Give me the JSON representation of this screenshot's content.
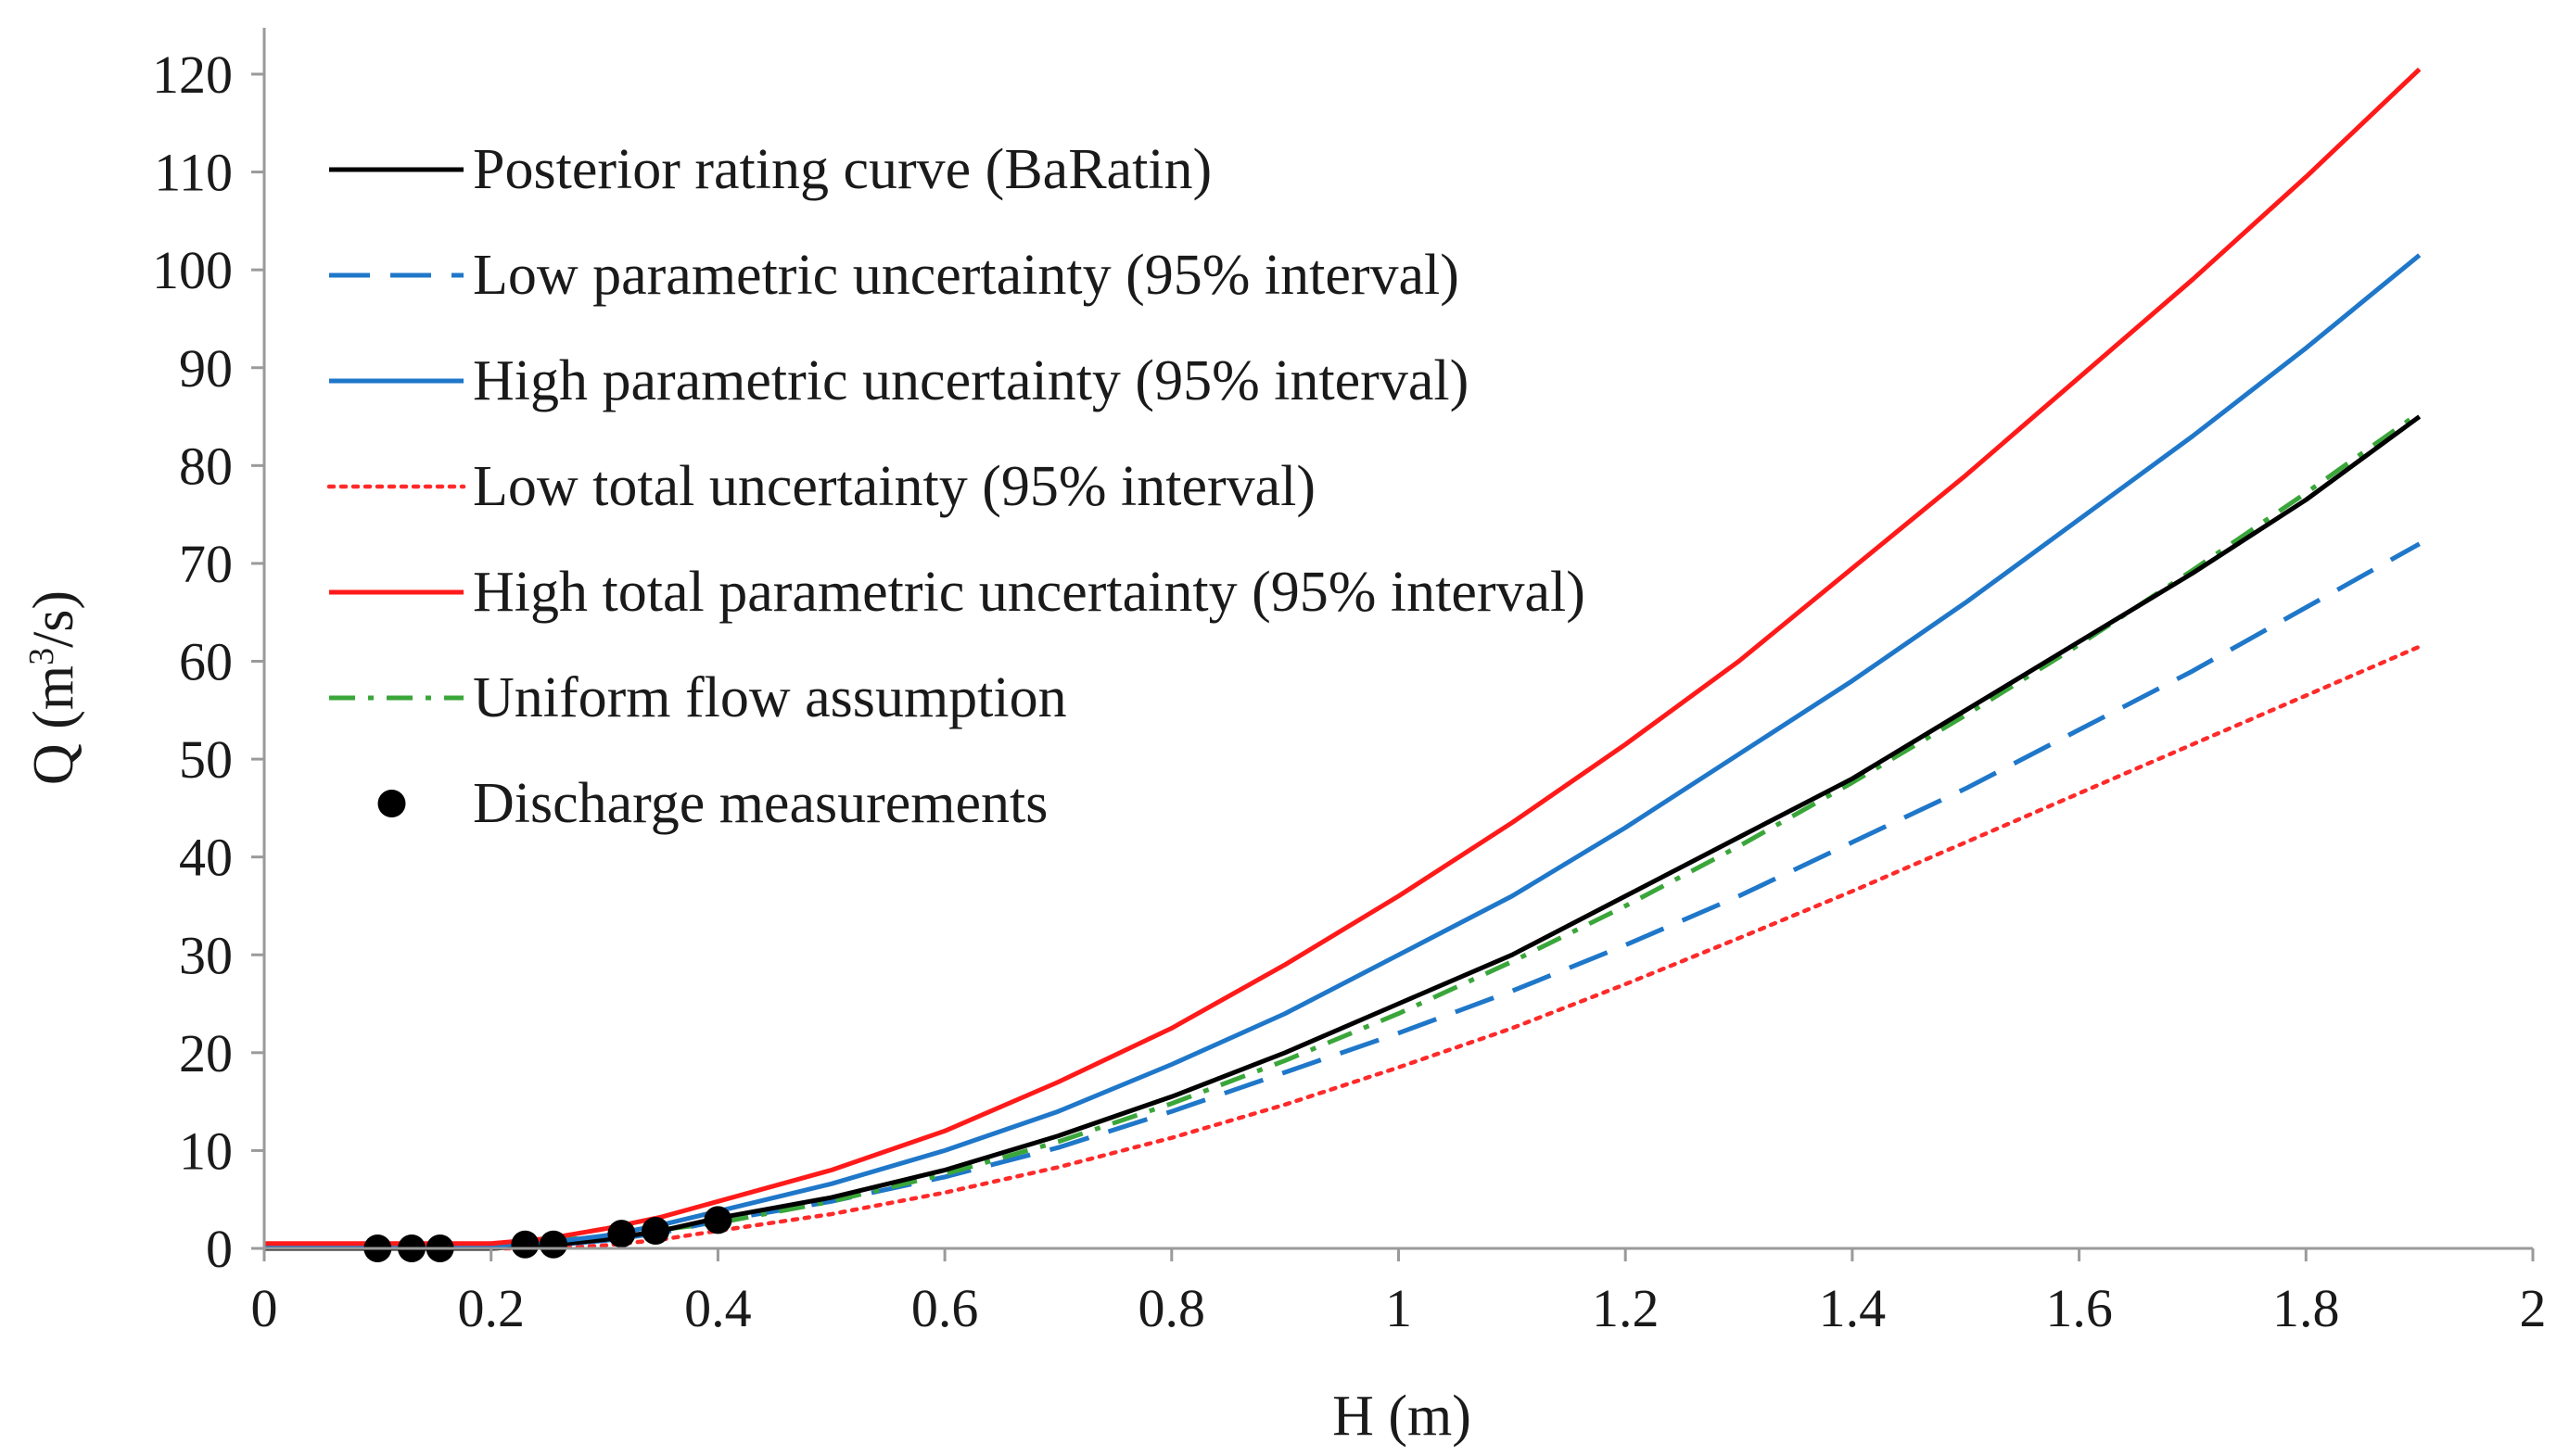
{
  "chart_data": {
    "type": "line",
    "title": "",
    "xlabel": "H (m)",
    "ylabel_main": "Q (m",
    "ylabel_sup": "3",
    "ylabel_end": "/s)",
    "xlim": [
      0,
      2
    ],
    "ylim": [
      0,
      125
    ],
    "xticks": [
      0,
      0.2,
      0.4,
      0.6,
      0.8,
      1,
      1.2,
      1.4,
      1.6,
      1.8,
      2
    ],
    "xtick_labels": [
      "0",
      "0.2",
      "0.4",
      "0.6",
      "0.8",
      "1",
      "1.2",
      "1.4",
      "1.6",
      "1.8",
      "2"
    ],
    "yticks": [
      0,
      10,
      20,
      30,
      40,
      50,
      60,
      70,
      80,
      90,
      100,
      110,
      120
    ],
    "ytick_labels": [
      "0",
      "10",
      "20",
      "30",
      "40",
      "50",
      "60",
      "70",
      "80",
      "90",
      "100",
      "110",
      "120"
    ],
    "grid": false,
    "legend_position": "top-left",
    "series": [
      {
        "name": "Posterior rating curve (BaRatin)",
        "color": "#000000",
        "dash": "solid",
        "x": [
          0,
          0.1,
          0.2,
          0.25,
          0.3,
          0.35,
          0.4,
          0.5,
          0.6,
          0.7,
          0.8,
          0.9,
          1.0,
          1.1,
          1.2,
          1.3,
          1.4,
          1.5,
          1.6,
          1.7,
          1.8,
          1.9
        ],
        "y": [
          0,
          0,
          0,
          0.3,
          0.9,
          1.8,
          3.1,
          5.2,
          8.0,
          11.5,
          15.5,
          20.0,
          25.0,
          30.0,
          36.0,
          42.0,
          48.0,
          55.0,
          62.0,
          69.0,
          76.5,
          85.0
        ]
      },
      {
        "name": "Low parametric uncertainty (95% interval)",
        "color": "#1f77c9",
        "dash": "long-dash",
        "x": [
          0,
          0.1,
          0.2,
          0.25,
          0.3,
          0.35,
          0.4,
          0.5,
          0.6,
          0.7,
          0.8,
          0.9,
          1.0,
          1.1,
          1.2,
          1.3,
          1.4,
          1.5,
          1.6,
          1.7,
          1.8,
          1.9
        ],
        "y": [
          0,
          0,
          0,
          0.3,
          0.8,
          1.6,
          2.8,
          4.8,
          7.3,
          10.3,
          14.0,
          18.0,
          22.0,
          26.3,
          31.0,
          36.0,
          41.5,
          47.0,
          53.0,
          59.0,
          65.5,
          72.0
        ]
      },
      {
        "name": "High parametric uncertainty (95% interval)",
        "color": "#1f77c9",
        "dash": "solid",
        "x": [
          0,
          0.1,
          0.2,
          0.25,
          0.3,
          0.35,
          0.4,
          0.5,
          0.6,
          0.7,
          0.8,
          0.9,
          1.0,
          1.1,
          1.2,
          1.3,
          1.4,
          1.5,
          1.6,
          1.7,
          1.8,
          1.9
        ],
        "y": [
          0.3,
          0.3,
          0.3,
          0.6,
          1.3,
          2.4,
          3.8,
          6.6,
          10.0,
          14.0,
          18.8,
          24.0,
          30.0,
          36.0,
          43.0,
          50.5,
          58.0,
          66.0,
          74.5,
          83.0,
          92.0,
          101.5
        ]
      },
      {
        "name": "Low total uncertainty (95% interval)",
        "color": "#ff2a2a",
        "dash": "dotted",
        "x": [
          0,
          0.1,
          0.2,
          0.25,
          0.3,
          0.35,
          0.4,
          0.5,
          0.6,
          0.7,
          0.8,
          0.9,
          1.0,
          1.1,
          1.2,
          1.3,
          1.4,
          1.5,
          1.6,
          1.7,
          1.8,
          1.9
        ],
        "y": [
          0,
          0,
          0,
          0,
          0.3,
          0.9,
          1.8,
          3.5,
          5.7,
          8.3,
          11.3,
          14.7,
          18.5,
          22.5,
          27.0,
          31.7,
          36.5,
          41.5,
          46.5,
          51.5,
          56.5,
          61.5
        ]
      },
      {
        "name": "High total parametric uncertainty (95% interval)",
        "color": "#ff1a1a",
        "dash": "solid",
        "x": [
          0,
          0.1,
          0.2,
          0.25,
          0.3,
          0.35,
          0.4,
          0.5,
          0.6,
          0.7,
          0.8,
          0.9,
          1.0,
          1.1,
          1.2,
          1.3,
          1.4,
          1.5,
          1.6,
          1.7,
          1.8,
          1.9
        ],
        "y": [
          0.5,
          0.5,
          0.5,
          1.0,
          2.0,
          3.2,
          4.8,
          8.0,
          12.0,
          17.0,
          22.5,
          29.0,
          36.0,
          43.5,
          51.5,
          60.0,
          69.5,
          79.0,
          89.0,
          99.0,
          109.5,
          120.5
        ]
      },
      {
        "name": "Uniform flow assumption",
        "color": "#3aa63a",
        "dash": "dash-dot",
        "x": [
          0,
          0.1,
          0.2,
          0.3,
          0.4,
          0.5,
          0.6,
          0.7,
          0.8,
          0.9,
          1.0,
          1.1,
          1.2,
          1.3,
          1.4,
          1.5,
          1.6,
          1.7,
          1.8,
          1.9
        ],
        "y": [
          0,
          0.1,
          0.4,
          1.2,
          2.6,
          4.8,
          7.6,
          10.9,
          14.8,
          19.2,
          24.0,
          29.3,
          35.0,
          41.1,
          47.6,
          54.5,
          61.7,
          69.3,
          77.2,
          85.4
        ]
      }
    ],
    "scatter": {
      "name": "Discharge measurements",
      "color": "#000000",
      "x": [
        0.1,
        0.13,
        0.155,
        0.23,
        0.255,
        0.315,
        0.345,
        0.4
      ],
      "y": [
        0,
        0,
        0,
        0.4,
        0.4,
        1.5,
        1.8,
        2.9
      ]
    }
  }
}
